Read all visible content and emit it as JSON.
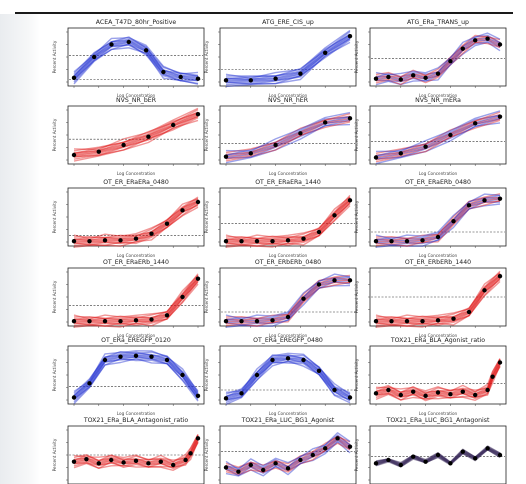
{
  "figure": {
    "accent_colors": {
      "blue": "#1f2fd0",
      "red": "#e01818",
      "dark": "#3a2a5a"
    }
  },
  "chart_data": [
    {
      "type": "line",
      "title": "ACEA_T47D_80hr_Positive",
      "xlabel": "Log Concentration",
      "ylabel": "Percent Activity",
      "color": "blue",
      "x": [
        -2.5,
        -1.8,
        -1.2,
        -0.6,
        0,
        0.6,
        1.2,
        1.8
      ],
      "y": [
        5,
        30,
        45,
        48,
        38,
        12,
        6,
        4
      ],
      "hline": [
        32,
        3
      ],
      "ylim": [
        0,
        60
      ]
    },
    {
      "type": "line",
      "title": "ATG_ERE_CIS_up",
      "xlabel": "Log Concentration",
      "ylabel": "Percent Activity",
      "color": "blue",
      "x": [
        -2.5,
        -1.5,
        -0.5,
        0.5,
        1.5,
        2.5
      ],
      "y": [
        2,
        2,
        4,
        10,
        35,
        55
      ],
      "hline": [
        15
      ],
      "ylim": [
        0,
        60
      ]
    },
    {
      "type": "line",
      "title": "ATG_ERa_TRANS_up",
      "xlabel": "Log Concentration",
      "ylabel": "Percent Activity",
      "color": "mixed",
      "x": [
        -2.5,
        -2,
        -1.5,
        -1,
        -0.5,
        0,
        0.5,
        1,
        1.5,
        2,
        2.5
      ],
      "y": [
        4,
        6,
        3,
        8,
        5,
        10,
        25,
        40,
        50,
        52,
        45
      ],
      "hline": [
        28
      ],
      "ylim": [
        0,
        60
      ]
    },
    {
      "type": "line",
      "title": "NVS_NR_bER",
      "xlabel": "Log Concentration",
      "ylabel": "Percent Activity",
      "color": "red",
      "x": [
        -2.5,
        -1.5,
        -0.5,
        0.5,
        1.5,
        2.5
      ],
      "y": [
        6,
        10,
        18,
        28,
        42,
        55
      ],
      "hline": [
        25
      ],
      "ylim": [
        0,
        60
      ]
    },
    {
      "type": "line",
      "title": "NVS_NR_hER",
      "xlabel": "Log Concentration",
      "ylabel": "Percent Activity",
      "color": "mixed",
      "x": [
        -2.5,
        -1.5,
        -0.5,
        0.5,
        1.5,
        2.5
      ],
      "y": [
        4,
        8,
        18,
        32,
        45,
        50
      ],
      "hline": [
        20
      ],
      "ylim": [
        0,
        60
      ]
    },
    {
      "type": "line",
      "title": "NVS_NR_mERa",
      "xlabel": "Log Concentration",
      "ylabel": "Percent Activity",
      "color": "mixed",
      "x": [
        -2.5,
        -1.5,
        -0.5,
        0.5,
        1.5,
        2.5
      ],
      "y": [
        3,
        8,
        16,
        30,
        44,
        52
      ],
      "hline": [
        22
      ],
      "ylim": [
        0,
        60
      ]
    },
    {
      "type": "line",
      "title": "OT_ER_ERaERa_0480",
      "xlabel": "Log Concentration",
      "ylabel": "Percent Activity",
      "color": "red",
      "x": [
        -2,
        -1.5,
        -1,
        -0.5,
        0,
        0.5,
        1,
        1.5,
        2
      ],
      "y": [
        1,
        1,
        2,
        2,
        4,
        10,
        22,
        38,
        48
      ],
      "hline": [
        8
      ],
      "ylim": [
        0,
        60
      ]
    },
    {
      "type": "line",
      "title": "OT_ER_ERaERa_1440",
      "xlabel": "Log Concentration",
      "ylabel": "Percent Activity",
      "color": "red",
      "x": [
        -2,
        -1.5,
        -1,
        -0.5,
        0,
        0.5,
        1,
        1.5,
        2
      ],
      "y": [
        1,
        1,
        1,
        1,
        2,
        4,
        12,
        32,
        50
      ],
      "hline": [
        22
      ],
      "ylim": [
        0,
        60
      ]
    },
    {
      "type": "line",
      "title": "OT_ER_ERaERb_0480",
      "xlabel": "Log Concentration",
      "ylabel": "Percent Activity",
      "color": "mixed",
      "x": [
        -2,
        -1.5,
        -1,
        -0.5,
        0,
        0.5,
        1,
        1.5,
        2
      ],
      "y": [
        1,
        1,
        1,
        2,
        6,
        25,
        44,
        50,
        52
      ],
      "hline": [
        12
      ],
      "ylim": [
        0,
        60
      ]
    },
    {
      "type": "line",
      "title": "OT_ER_ERaERb_1440",
      "xlabel": "Log Concentration",
      "ylabel": "Percent Activity",
      "color": "red",
      "x": [
        -2,
        -1.5,
        -1,
        -0.5,
        0,
        0.5,
        1,
        1.5,
        2
      ],
      "y": [
        1,
        1,
        1,
        1,
        2,
        3,
        8,
        30,
        52
      ],
      "hline": [
        20
      ],
      "ylim": [
        0,
        60
      ]
    },
    {
      "type": "line",
      "title": "OT_ER_ERbERb_0480",
      "xlabel": "Log Concentration",
      "ylabel": "Percent Activity",
      "color": "mixed",
      "x": [
        -2,
        -1.5,
        -1,
        -0.5,
        0,
        0.5,
        1,
        1.5,
        2
      ],
      "y": [
        1,
        1,
        1,
        2,
        6,
        28,
        45,
        50,
        50
      ],
      "hline": [
        12
      ],
      "ylim": [
        0,
        60
      ]
    },
    {
      "type": "line",
      "title": "OT_ER_ERbERb_1440",
      "xlabel": "Log Concentration",
      "ylabel": "Percent Activity",
      "color": "red",
      "x": [
        -2,
        -1.5,
        -1,
        -0.5,
        0,
        0.5,
        1,
        1.5,
        2
      ],
      "y": [
        1,
        1,
        1,
        1,
        2,
        4,
        12,
        38,
        55
      ],
      "hline": [
        30
      ],
      "ylim": [
        0,
        60
      ]
    },
    {
      "type": "line",
      "title": "OT_ERa_EREGFP_0120",
      "xlabel": "Log Concentration",
      "ylabel": "Percent Activity",
      "color": "blue",
      "x": [
        -2,
        -1.5,
        -1,
        -0.5,
        0,
        0.5,
        1,
        1.5,
        2
      ],
      "y": [
        3,
        20,
        48,
        52,
        53,
        52,
        48,
        30,
        5
      ],
      "hline": [
        16
      ],
      "ylim": [
        0,
        60
      ]
    },
    {
      "type": "line",
      "title": "OT_ERa_EREGFP_0480",
      "xlabel": "Log Concentration",
      "ylabel": "Percent Activity",
      "color": "blue",
      "x": [
        -2,
        -1.5,
        -1,
        -0.5,
        0,
        0.5,
        1,
        1.5,
        2
      ],
      "y": [
        2,
        8,
        30,
        48,
        50,
        48,
        35,
        12,
        3
      ],
      "hline": [
        12
      ],
      "ylim": [
        0,
        60
      ]
    },
    {
      "type": "line",
      "title": "TOX21_ERa_BLA_Agonist_ratio",
      "xlabel": "Log Concentration",
      "ylabel": "Percent Activity",
      "color": "red",
      "x": [
        -2.5,
        -2,
        -1.5,
        -1,
        -0.5,
        0,
        0.5,
        1,
        1.5,
        2,
        2.2,
        2.5
      ],
      "y": [
        8,
        12,
        6,
        10,
        5,
        9,
        7,
        10,
        6,
        12,
        28,
        45
      ],
      "hline": [
        20
      ],
      "ylim": [
        0,
        60
      ]
    },
    {
      "type": "line",
      "title": "TOX21_ERa_BLA_Antagonist_ratio",
      "xlabel": "Log Concentration",
      "ylabel": "Percent Activity",
      "color": "red",
      "x": [
        -2.5,
        -2,
        -1.5,
        -1,
        -0.5,
        0,
        0.5,
        1,
        1.5,
        2,
        2.2,
        2.5
      ],
      "y": [
        22,
        25,
        20,
        24,
        21,
        23,
        20,
        22,
        18,
        24,
        32,
        50
      ],
      "hline": [
        30
      ],
      "ylim": [
        0,
        60
      ]
    },
    {
      "type": "line",
      "title": "TOX21_ERa_LUC_BG1_Agonist",
      "xlabel": "Log Concentration",
      "ylabel": "Percent Activity",
      "color": "mixed",
      "x": [
        -2.5,
        -2,
        -1.5,
        -1,
        -0.5,
        0,
        0.5,
        1,
        1.5,
        2,
        2.5
      ],
      "y": [
        15,
        10,
        18,
        12,
        20,
        14,
        24,
        30,
        38,
        50,
        40
      ],
      "hline": [
        34
      ],
      "ylim": [
        0,
        60
      ]
    },
    {
      "type": "line",
      "title": "TOX21_ERa_LUC_BG1_Antagonist",
      "xlabel": "Log Concentration",
      "ylabel": "Percent Activity",
      "color": "dark",
      "x": [
        -2.5,
        -2,
        -1.5,
        -1,
        -0.5,
        0,
        0.5,
        1,
        1.5,
        2,
        2.5
      ],
      "y": [
        20,
        24,
        18,
        28,
        22,
        30,
        20,
        34,
        26,
        38,
        30
      ],
      "hline": [
        28
      ],
      "ylim": [
        0,
        60
      ]
    }
  ]
}
